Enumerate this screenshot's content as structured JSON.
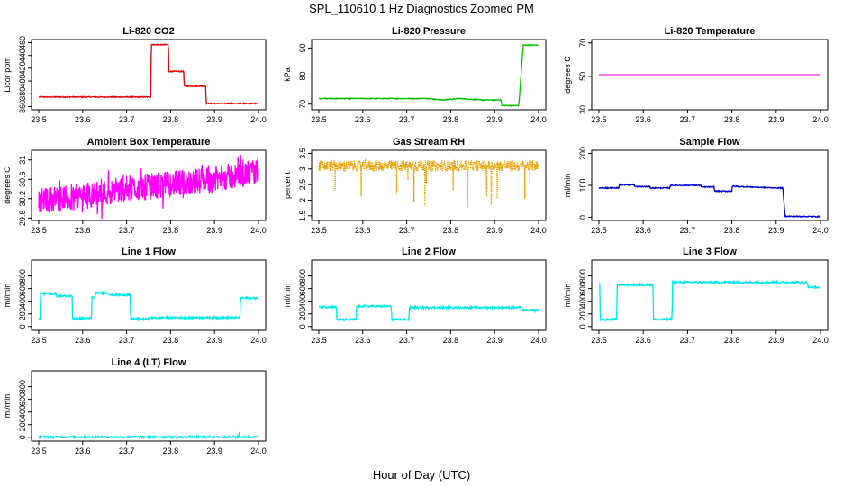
{
  "title": "SPL_110610  1 Hz Diagnostics Zoomed PM",
  "xlabel": "Hour of Day (UTC)",
  "colors": {
    "co2": "#e00000",
    "pressure": "#00c000",
    "temperature": "#e000e0",
    "ambient": "#ff00ff",
    "rh": "#e8a000",
    "sample_flow": "#0000d0",
    "line_flow": "#00e8e8"
  },
  "chart_data": [
    {
      "type": "line",
      "title": "Li-820 CO2",
      "ylabel": "Licor ppm",
      "xlabel": "",
      "xlim": [
        23.5,
        24.0
      ],
      "ylim": [
        355,
        465
      ],
      "xticks": [
        "23.5",
        "23.6",
        "23.7",
        "23.8",
        "23.9",
        "24.0"
      ],
      "yticks": [
        360,
        380,
        400,
        420,
        440,
        460
      ],
      "color_key": "co2",
      "series": [
        {
          "name": "CO2",
          "x": [
            23.5,
            23.755,
            23.756,
            23.795,
            23.796,
            23.83,
            23.831,
            23.88,
            23.881,
            24.0
          ],
          "y": [
            375,
            375,
            457,
            457,
            415,
            415,
            392,
            392,
            365,
            365
          ]
        }
      ]
    },
    {
      "type": "line",
      "title": "Li-820 Pressure",
      "ylabel": "kPa",
      "xlabel": "",
      "xlim": [
        23.5,
        24.0
      ],
      "ylim": [
        68,
        93
      ],
      "xticks": [
        "23.5",
        "23.6",
        "23.7",
        "23.8",
        "23.9",
        "24.0"
      ],
      "yticks": [
        70,
        80,
        90
      ],
      "color_key": "pressure",
      "series": [
        {
          "name": "Pressure",
          "x": [
            23.5,
            23.75,
            23.78,
            23.82,
            23.87,
            23.915,
            23.916,
            23.955,
            23.965,
            23.98,
            24.0
          ],
          "y": [
            72,
            72,
            71.5,
            72,
            71.5,
            71.5,
            69.5,
            69.5,
            91,
            91,
            91
          ]
        }
      ]
    },
    {
      "type": "line",
      "title": "Li-820 Temperature",
      "ylabel": "degrees C",
      "xlabel": "",
      "xlim": [
        23.5,
        24.0
      ],
      "ylim": [
        30,
        72
      ],
      "xticks": [
        "23.5",
        "23.6",
        "23.7",
        "23.8",
        "23.9",
        "24.0"
      ],
      "yticks": [
        30,
        50,
        70
      ],
      "color_key": "temperature",
      "series": [
        {
          "name": "Temperature",
          "x": [
            23.5,
            24.0
          ],
          "y": [
            51,
            51
          ]
        }
      ]
    },
    {
      "type": "line",
      "title": "Ambient Box Temperature",
      "ylabel": "degrees C",
      "xlabel": "",
      "xlim": [
        23.5,
        24.0
      ],
      "ylim": [
        29.75,
        31.2
      ],
      "xticks": [
        "23.5",
        "23.6",
        "23.7",
        "23.8",
        "23.9",
        "24.0"
      ],
      "yticks": [
        29.8,
        30.2,
        30.6,
        31.0
      ],
      "color_key": "ambient",
      "series": [
        {
          "name": "Ambient",
          "x": [
            23.5,
            23.6,
            23.7,
            23.8,
            23.9,
            24.0
          ],
          "y": [
            30.15,
            30.25,
            30.4,
            30.5,
            30.6,
            30.75
          ]
        }
      ]
    },
    {
      "type": "line",
      "title": "Gas Stream RH",
      "ylabel": "percent",
      "xlabel": "",
      "xlim": [
        23.5,
        24.0
      ],
      "ylim": [
        1.35,
        3.6
      ],
      "xticks": [
        "23.5",
        "23.6",
        "23.7",
        "23.8",
        "23.9",
        "24.0"
      ],
      "yticks": [
        1.5,
        2.0,
        2.5,
        3.0,
        3.5
      ],
      "color_key": "rh",
      "series": [
        {
          "name": "RH",
          "x": [
            23.5,
            24.0
          ],
          "y": [
            3.1,
            3.1
          ]
        }
      ]
    },
    {
      "type": "line",
      "title": "Sample Flow",
      "ylabel": "ml/min",
      "xlabel": "",
      "xlim": [
        23.5,
        24.0
      ],
      "ylim": [
        -10,
        210
      ],
      "xticks": [
        "23.5",
        "23.6",
        "23.7",
        "23.8",
        "23.9",
        "24.0"
      ],
      "yticks": [
        0,
        100,
        200
      ],
      "color_key": "sample_flow",
      "series": [
        {
          "name": "Sample Flow",
          "x": [
            23.5,
            23.545,
            23.546,
            23.58,
            23.581,
            23.615,
            23.616,
            23.66,
            23.661,
            23.73,
            23.731,
            23.76,
            23.761,
            23.8,
            23.801,
            23.9,
            23.915,
            23.92,
            24.0
          ],
          "y": [
            92,
            92,
            102,
            102,
            96,
            96,
            92,
            92,
            100,
            100,
            95,
            95,
            82,
            82,
            97,
            92,
            92,
            3,
            2
          ]
        }
      ]
    },
    {
      "type": "line",
      "title": "Line 1 Flow",
      "ylabel": "ml/min",
      "xlabel": "",
      "xlim": [
        23.5,
        24.0
      ],
      "ylim": [
        -60,
        1050
      ],
      "xticks": [
        "23.5",
        "23.6",
        "23.7",
        "23.8",
        "23.9",
        "24.0"
      ],
      "yticks": [
        0,
        200,
        400,
        600,
        800
      ],
      "color_key": "line_flow",
      "series": [
        {
          "name": "Line 1",
          "x": [
            23.5,
            23.503,
            23.504,
            23.54,
            23.541,
            23.576,
            23.577,
            23.62,
            23.621,
            23.628,
            23.629,
            23.66,
            23.661,
            23.708,
            23.709,
            23.75,
            23.751,
            23.958,
            23.959,
            24.0
          ],
          "y": [
            120,
            120,
            520,
            520,
            480,
            480,
            130,
            130,
            460,
            460,
            530,
            530,
            500,
            500,
            120,
            120,
            140,
            140,
            450,
            450
          ]
        }
      ]
    },
    {
      "type": "line",
      "title": "Line 2 Flow",
      "ylabel": "ml/min",
      "xlabel": "",
      "xlim": [
        23.5,
        24.0
      ],
      "ylim": [
        -60,
        1050
      ],
      "xticks": [
        "23.5",
        "23.6",
        "23.7",
        "23.8",
        "23.9",
        "24.0"
      ],
      "yticks": [
        0,
        200,
        400,
        600,
        800
      ],
      "color_key": "line_flow",
      "series": [
        {
          "name": "Line 2",
          "x": [
            23.5,
            23.54,
            23.541,
            23.585,
            23.586,
            23.665,
            23.666,
            23.705,
            23.706,
            23.958,
            23.96,
            24.0
          ],
          "y": [
            310,
            310,
            110,
            110,
            320,
            320,
            110,
            110,
            300,
            300,
            260,
            260
          ]
        }
      ]
    },
    {
      "type": "line",
      "title": "Line 3 Flow",
      "ylabel": "ml/min",
      "xlabel": "",
      "xlim": [
        23.5,
        24.0
      ],
      "ylim": [
        -60,
        1050
      ],
      "xticks": [
        "23.5",
        "23.6",
        "23.7",
        "23.8",
        "23.9",
        "24.0"
      ],
      "yticks": [
        0,
        200,
        400,
        600,
        800
      ],
      "color_key": "line_flow",
      "series": [
        {
          "name": "Line 3",
          "x": [
            23.5,
            23.502,
            23.503,
            23.54,
            23.541,
            23.622,
            23.623,
            23.665,
            23.666,
            23.97,
            23.972,
            24.0
          ],
          "y": [
            680,
            680,
            110,
            110,
            660,
            660,
            110,
            110,
            700,
            700,
            620,
            620
          ]
        }
      ]
    },
    {
      "type": "line",
      "title": "Line 4 (LT) Flow",
      "ylabel": "ml/min",
      "xlabel": "",
      "xlim": [
        23.5,
        24.0
      ],
      "ylim": [
        -60,
        1050
      ],
      "xticks": [
        "23.5",
        "23.6",
        "23.7",
        "23.8",
        "23.9",
        "24.0"
      ],
      "yticks": [
        0,
        200,
        400,
        600,
        800
      ],
      "color_key": "line_flow",
      "series": [
        {
          "name": "Line 4",
          "x": [
            23.5,
            23.955,
            23.956,
            23.957,
            23.958,
            24.0
          ],
          "y": [
            5,
            5,
            70,
            70,
            5,
            5
          ]
        }
      ]
    }
  ]
}
